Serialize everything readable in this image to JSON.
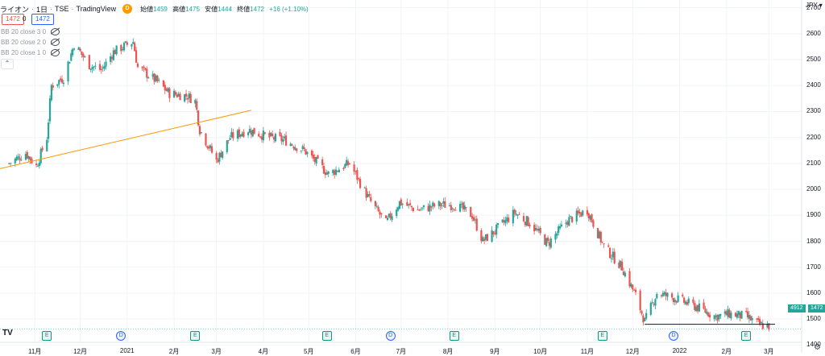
{
  "header": {
    "symbol": "ライオン",
    "interval": "1日",
    "exchange": "TSE",
    "source": "TradingView",
    "badge": "D",
    "open_label": "始値",
    "open": "1459",
    "high_label": "高値",
    "high": "1475",
    "low_label": "安値",
    "low": "1444",
    "close_label": "終値",
    "close": "1472",
    "change": "+16 (+1.10%)"
  },
  "trade": {
    "sell": "1472",
    "spread": "0",
    "buy": "1472"
  },
  "indicators": [
    "BB 20 close 3 0",
    "BB 20 close 2 0",
    "BB 20 close 1 0"
  ],
  "collapse_icon": "chevron-up-icon",
  "currency": "JPY",
  "volume_tag": "4912",
  "price_tag": "1472",
  "colors": {
    "up": "#26a69a",
    "down": "#ef5350",
    "trend": "#ff9800",
    "grid": "#f0f3fa",
    "accent": "#2962ff"
  },
  "events": [
    "E",
    "D",
    "E",
    "E",
    "D",
    "E",
    "E",
    "D",
    "E"
  ],
  "chart_data": {
    "type": "candlestick",
    "title": "",
    "ylim": [
      1370,
      2730
    ],
    "y_ticks": [
      1400,
      1500,
      1600,
      1700,
      1800,
      1900,
      2000,
      2100,
      2200,
      2300,
      2400,
      2500,
      2600,
      2700
    ],
    "x_ticks": [
      "11月",
      "12月",
      "2021",
      "2月",
      "3月",
      "4月",
      "5月",
      "6月",
      "7月",
      "8月",
      "9月",
      "10月",
      "11月",
      "12月",
      "2022",
      "2月",
      "3月"
    ],
    "close_series": [
      [
        "2020-10-15",
        2100
      ],
      [
        "2020-10-26",
        2140
      ],
      [
        "2020-11-02",
        2090
      ],
      [
        "2020-11-09",
        2200
      ],
      [
        "2020-11-12",
        2400
      ],
      [
        "2020-11-20",
        2430
      ],
      [
        "2020-11-27",
        2560
      ],
      [
        "2020-12-07",
        2480
      ],
      [
        "2020-12-15",
        2460
      ],
      [
        "2020-12-23",
        2530
      ],
      [
        "2021-01-05",
        2570
      ],
      [
        "2021-01-08",
        2470
      ],
      [
        "2021-01-20",
        2420
      ],
      [
        "2021-01-29",
        2370
      ],
      [
        "2021-02-10",
        2360
      ],
      [
        "2021-02-15",
        2340
      ],
      [
        "2021-02-18",
        2230
      ],
      [
        "2021-03-01",
        2110
      ],
      [
        "2021-03-10",
        2200
      ],
      [
        "2021-03-22",
        2230
      ],
      [
        "2021-04-05",
        2200
      ],
      [
        "2021-04-15",
        2190
      ],
      [
        "2021-04-28",
        2150
      ],
      [
        "2021-05-14",
        2060
      ],
      [
        "2021-05-28",
        2100
      ],
      [
        "2021-06-10",
        1960
      ],
      [
        "2021-06-21",
        1870
      ],
      [
        "2021-06-30",
        1950
      ],
      [
        "2021-07-12",
        1920
      ],
      [
        "2021-07-26",
        1940
      ],
      [
        "2021-08-06",
        1940
      ],
      [
        "2021-08-17",
        1900
      ],
      [
        "2021-08-24",
        1800
      ],
      [
        "2021-09-01",
        1840
      ],
      [
        "2021-09-14",
        1910
      ],
      [
        "2021-09-24",
        1870
      ],
      [
        "2021-10-06",
        1790
      ],
      [
        "2021-10-19",
        1880
      ],
      [
        "2021-11-01",
        1920
      ],
      [
        "2021-11-12",
        1780
      ],
      [
        "2021-11-24",
        1700
      ],
      [
        "2021-12-03",
        1590
      ],
      [
        "2021-12-09",
        1490
      ],
      [
        "2021-12-17",
        1600
      ],
      [
        "2021-12-29",
        1580
      ],
      [
        "2022-01-11",
        1550
      ],
      [
        "2022-01-25",
        1510
      ],
      [
        "2022-02-03",
        1520
      ],
      [
        "2022-02-14",
        1510
      ],
      [
        "2022-02-22",
        1480
      ],
      [
        "2022-03-01",
        1472
      ]
    ],
    "trendline": [
      [
        "2020-10-09",
        2080
      ],
      [
        "2021-03-24",
        2305
      ]
    ],
    "support_level": 1480,
    "last_price": 1472
  }
}
